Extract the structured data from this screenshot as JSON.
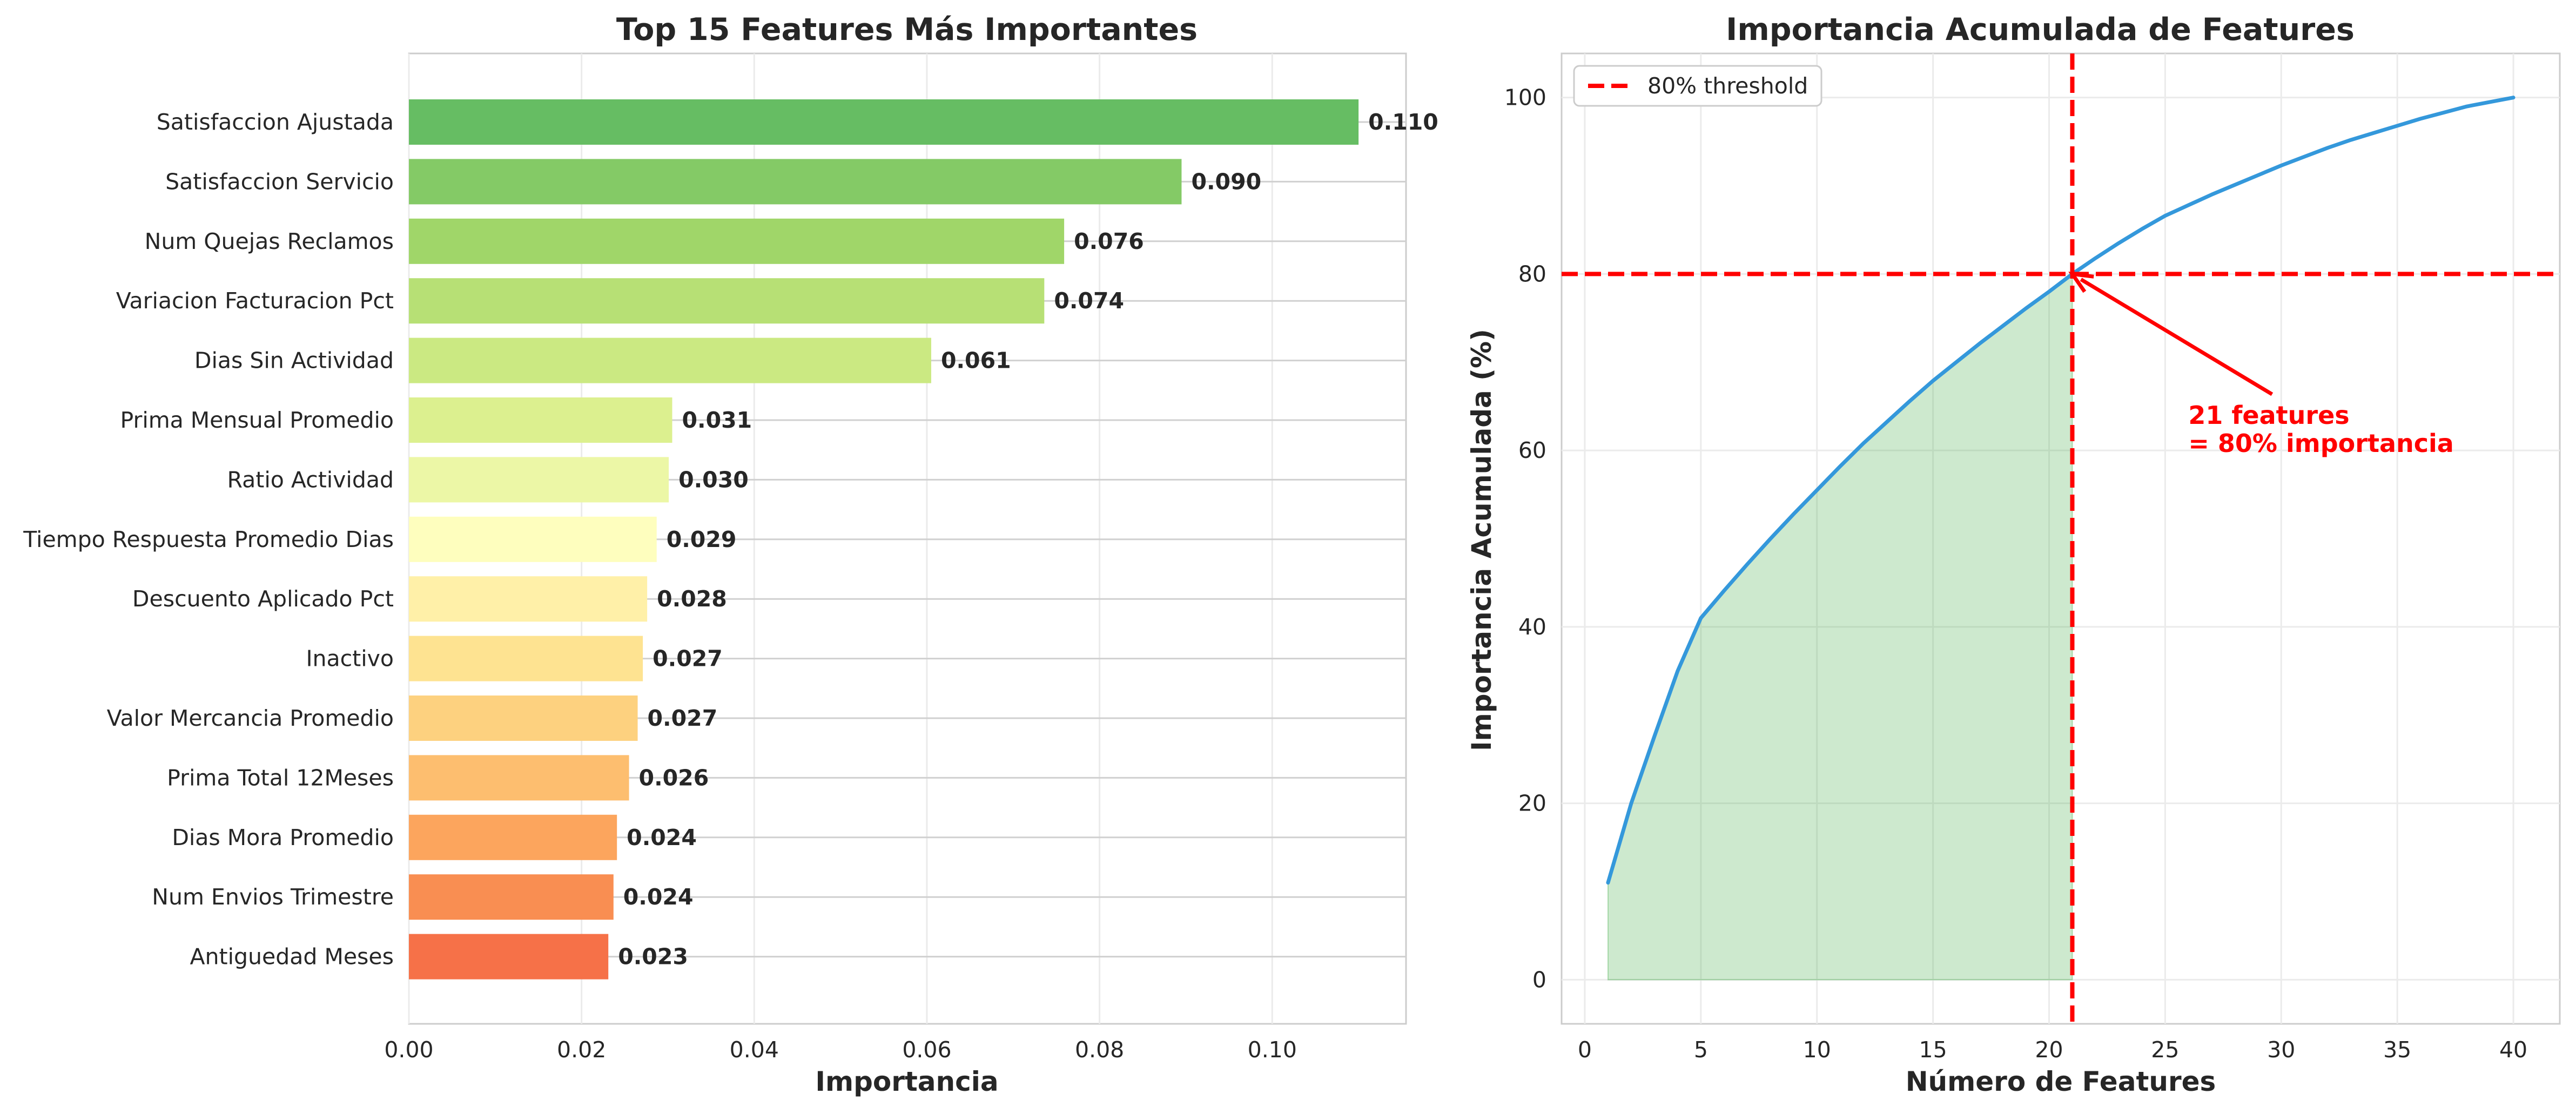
{
  "chart_data": [
    {
      "type": "bar",
      "orientation": "horizontal",
      "title": "Top 15 Features Más Importantes",
      "xlabel": "Importancia",
      "ylabel": "",
      "xlim": [
        0,
        0.1155
      ],
      "xticks": [
        "0.00",
        "0.02",
        "0.04",
        "0.06",
        "0.08",
        "0.10"
      ],
      "grid": true,
      "categories": [
        "Satisfaccion Ajustada",
        "Satisfaccion Servicio",
        "Num Quejas Reclamos",
        "Variacion Facturacion Pct",
        "Dias Sin Actividad",
        "Prima Mensual Promedio",
        "Ratio Actividad",
        "Tiempo Respuesta Promedio Dias",
        "Descuento Aplicado Pct",
        "Inactivo",
        "Valor Mercancia Promedio",
        "Prima Total 12Meses",
        "Dias Mora Promedio",
        "Num Envios Trimestre",
        "Antiguedad Meses"
      ],
      "values": [
        0.11,
        0.0895,
        0.0759,
        0.0736,
        0.0605,
        0.0305,
        0.0301,
        0.0287,
        0.0276,
        0.0271,
        0.0265,
        0.0255,
        0.0241,
        0.0237,
        0.0231
      ],
      "value_labels": [
        "0.110",
        "0.090",
        "0.076",
        "0.074",
        "0.061",
        "0.031",
        "0.030",
        "0.029",
        "0.028",
        "0.027",
        "0.027",
        "0.026",
        "0.024",
        "0.024",
        "0.023"
      ],
      "colors": [
        "#66bd63",
        "#84ca66",
        "#a0d669",
        "#b7e075",
        "#cbe982",
        "#dcf08f",
        "#ecf7a6",
        "#fefebe",
        "#fff0a8",
        "#fee391",
        "#fdd17f",
        "#fdbe6f",
        "#fca55d",
        "#f98e52",
        "#f67148"
      ]
    },
    {
      "type": "line",
      "title": "Importancia Acumulada de Features",
      "xlabel": "Número de Features",
      "ylabel": "Importancia Acumulada (%)",
      "xlim": [
        -1,
        42
      ],
      "ylim": [
        -5,
        105
      ],
      "xticks": [
        0,
        5,
        10,
        15,
        20,
        25,
        30,
        35,
        40
      ],
      "yticks": [
        0,
        20,
        40,
        60,
        80,
        100
      ],
      "grid": true,
      "legend": {
        "position": "top-left",
        "entries": [
          "80% threshold"
        ]
      },
      "series": [
        {
          "color": "#3498db",
          "x": [
            1,
            2,
            3,
            4,
            5,
            6,
            7,
            8,
            9,
            10,
            11,
            12,
            13,
            14,
            15,
            16,
            17,
            18,
            19,
            20,
            21,
            22,
            23,
            24,
            25,
            26,
            27,
            28,
            29,
            30,
            31,
            32,
            33,
            34,
            35,
            36,
            37,
            38,
            39,
            40
          ],
          "y": [
            11.0,
            20.0,
            27.6,
            35.0,
            41.0,
            44.1,
            47.1,
            50.0,
            52.8,
            55.5,
            58.2,
            60.8,
            63.2,
            65.6,
            67.9,
            70.0,
            72.1,
            74.1,
            76.1,
            78.0,
            80.0,
            81.8,
            83.5,
            85.1,
            86.6,
            87.8,
            89.0,
            90.1,
            91.2,
            92.3,
            93.3,
            94.3,
            95.2,
            96.0,
            96.8,
            97.6,
            98.3,
            99.0,
            99.5,
            100.0
          ]
        }
      ],
      "threshold_y": 80,
      "threshold_x": 21,
      "threshold_color": "#ff0000",
      "fill_color": "#4caf50",
      "annotation": {
        "line1": "21 features",
        "line2": "= 80% importancia",
        "point": [
          21,
          80
        ],
        "text_at": [
          26,
          63
        ]
      }
    }
  ]
}
